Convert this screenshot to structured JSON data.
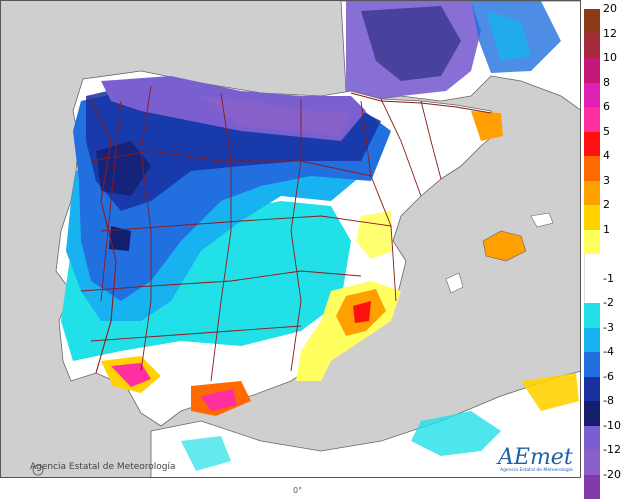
{
  "map": {
    "attribution": "Agencia Estatal de Meteorología",
    "copyright_symbol": "©",
    "logo_text": "AEmet",
    "logo_subtitle": "Agencia Estatal de Meteorología",
    "bottom_mark": "0°",
    "colors": {
      "land_neutral": "#ffffff",
      "sea": "#cfcfcf",
      "borders": "#8b1a1a",
      "coast": "#666666"
    }
  },
  "legend": {
    "items": [
      {
        "label": "20",
        "color": "#8c3b1a"
      },
      {
        "label": "12",
        "color": "#a52a3a"
      },
      {
        "label": "10",
        "color": "#c21877"
      },
      {
        "label": "8",
        "color": "#e01fb6"
      },
      {
        "label": "6",
        "color": "#ff2fa0"
      },
      {
        "label": "5",
        "color": "#ff1010"
      },
      {
        "label": "4",
        "color": "#ff6a00"
      },
      {
        "label": "3",
        "color": "#ffa000"
      },
      {
        "label": "2",
        "color": "#ffd200"
      },
      {
        "label": "1",
        "color": "#ffff60"
      },
      {
        "label": "",
        "color": "#ffffff"
      },
      {
        "label": "-1",
        "color": "#ffffff"
      },
      {
        "label": "-2",
        "color": "#22e0e8"
      },
      {
        "label": "-3",
        "color": "#18b2f0"
      },
      {
        "label": "-4",
        "color": "#2270e0"
      },
      {
        "label": "-6",
        "color": "#1830a0"
      },
      {
        "label": "-8",
        "color": "#141e6e"
      },
      {
        "label": "-10",
        "color": "#7a5fd0"
      },
      {
        "label": "-12",
        "color": "#8a60c8"
      },
      {
        "label": "-20",
        "color": "#7e3aa8"
      }
    ]
  }
}
